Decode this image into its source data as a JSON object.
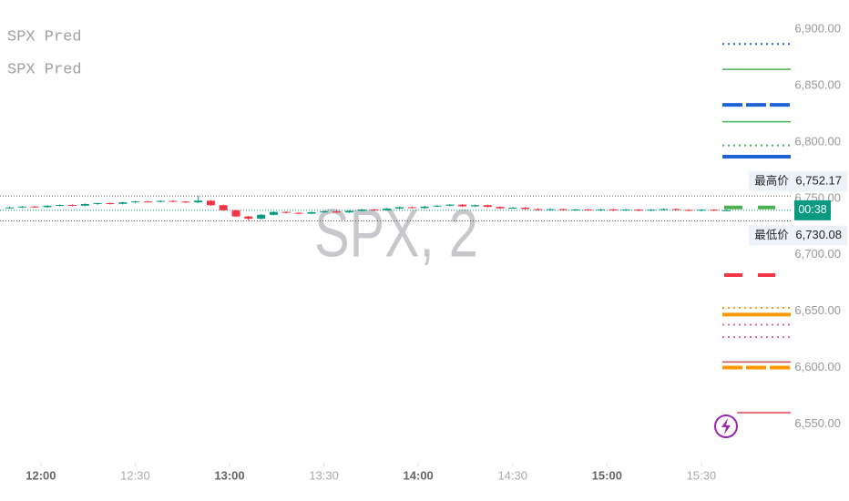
{
  "chart_data": {
    "type": "candlestick",
    "legend": [
      "SPX Pred",
      "SPX Pred"
    ],
    "watermark": "SPX, 2",
    "up_color": "#089981",
    "down_color": "#f23645",
    "x": [
      "11:48",
      "11:52",
      "11:56",
      "12:00",
      "12:04",
      "12:08",
      "12:12",
      "12:16",
      "12:20",
      "12:24",
      "12:28",
      "12:32",
      "12:36",
      "12:40",
      "12:44",
      "12:48",
      "12:52",
      "12:56",
      "13:00",
      "13:04",
      "13:08",
      "13:12",
      "13:16",
      "13:20",
      "13:24",
      "13:28",
      "13:32",
      "13:36",
      "13:40",
      "13:44",
      "13:48",
      "13:52",
      "13:56",
      "14:00",
      "14:04",
      "14:08",
      "14:12",
      "14:16",
      "14:20",
      "14:24",
      "14:28",
      "14:32",
      "14:36",
      "14:40",
      "14:44",
      "14:48",
      "14:52",
      "14:56",
      "15:00",
      "15:04",
      "15:08",
      "15:12",
      "15:16",
      "15:20",
      "15:24",
      "15:28",
      "15:32",
      "15:36"
    ],
    "open": [
      6741.6,
      6742.0,
      6742.8,
      6742.3,
      6743.5,
      6744.2,
      6743.6,
      6745.0,
      6745.8,
      6745.2,
      6746.5,
      6747.3,
      6747.0,
      6747.8,
      6747.2,
      6746.5,
      6748.0,
      6744.0,
      6739.5,
      6734.0,
      6732.0,
      6735.5,
      6738.0,
      6737.2,
      6736.5,
      6737.8,
      6738.5,
      6737.6,
      6739.0,
      6740.2,
      6739.6,
      6741.0,
      6742.2,
      6741.5,
      6742.8,
      6743.6,
      6744.5,
      6743.0,
      6744.0,
      6742.5,
      6741.2,
      6741.8,
      6740.6,
      6739.8,
      6740.5,
      6739.6,
      6740.2,
      6739.5,
      6740.3,
      6739.4,
      6740.1,
      6739.2,
      6740.0,
      6740.6,
      6739.8,
      6739.2,
      6740.0,
      6739.4
    ],
    "high": [
      6742.6,
      6743.4,
      6743.4,
      6744.1,
      6744.8,
      6744.8,
      6745.6,
      6746.4,
      6746.4,
      6747.1,
      6747.9,
      6747.9,
      6748.4,
      6748.4,
      6747.8,
      6752.17,
      6748.6,
      6744.6,
      6740.1,
      6734.6,
      6736.1,
      6738.6,
      6738.6,
      6737.8,
      6738.4,
      6739.1,
      6739.1,
      6739.6,
      6740.8,
      6740.8,
      6741.6,
      6742.8,
      6742.8,
      6743.4,
      6744.2,
      6745.1,
      6745.1,
      6744.6,
      6744.6,
      6743.1,
      6742.4,
      6742.4,
      6741.2,
      6741.1,
      6741.1,
      6740.8,
      6740.8,
      6740.9,
      6740.9,
      6740.7,
      6740.7,
      6740.6,
      6741.2,
      6741.2,
      6740.4,
      6740.6,
      6740.6,
      6740.1
    ],
    "low": [
      6741.0,
      6741.4,
      6741.7,
      6741.7,
      6742.9,
      6743.0,
      6743.0,
      6744.4,
      6744.6,
      6744.6,
      6745.9,
      6746.4,
      6746.4,
      6746.6,
      6745.9,
      6745.9,
      6743.4,
      6738.9,
      6733.4,
      6730.08,
      6731.4,
      6734.9,
      6736.6,
      6735.9,
      6735.9,
      6737.2,
      6737.0,
      6737.0,
      6738.4,
      6739.0,
      6739.0,
      6740.4,
      6740.9,
      6740.9,
      6742.2,
      6743.0,
      6742.4,
      6742.4,
      6741.9,
      6740.6,
      6740.6,
      6740.0,
      6739.2,
      6739.2,
      6739.0,
      6739.0,
      6738.9,
      6738.9,
      6738.8,
      6738.8,
      6738.6,
      6738.6,
      6739.4,
      6739.2,
      6738.6,
      6738.6,
      6738.8,
      6738.8
    ],
    "close": [
      6742.0,
      6742.8,
      6742.3,
      6743.5,
      6744.2,
      6743.6,
      6745.0,
      6745.8,
      6745.2,
      6746.5,
      6747.3,
      6747.0,
      6747.8,
      6747.2,
      6746.5,
      6748.0,
      6744.0,
      6739.5,
      6734.0,
      6732.0,
      6735.5,
      6738.0,
      6737.2,
      6736.5,
      6737.8,
      6738.5,
      6737.6,
      6739.0,
      6740.2,
      6739.6,
      6741.0,
      6742.2,
      6741.5,
      6742.8,
      6743.6,
      6744.5,
      6743.0,
      6744.0,
      6742.5,
      6741.2,
      6741.8,
      6740.6,
      6739.8,
      6740.5,
      6739.6,
      6740.2,
      6739.5,
      6740.3,
      6739.4,
      6740.1,
      6739.2,
      6740.0,
      6740.6,
      6739.8,
      6739.2,
      6740.0,
      6739.4,
      6739.5
    ],
    "xlim": [
      "11:47",
      "15:59"
    ],
    "xticks": [
      "12:00",
      "12:30",
      "13:00",
      "13:30",
      "14:00",
      "14:30",
      "15:00",
      "15:30"
    ],
    "ylim": [
      6518,
      6926
    ],
    "yticks": [
      {
        "value": 6550,
        "label": "6,550.00"
      },
      {
        "value": 6600,
        "label": "6,600.00"
      },
      {
        "value": 6650,
        "label": "6,650.00"
      },
      {
        "value": 6700,
        "label": "6,700.00"
      },
      {
        "value": 6750,
        "label": "6,750.00"
      },
      {
        "value": 6800,
        "label": "6,800.00"
      },
      {
        "value": 6850,
        "label": "6,850.00"
      },
      {
        "value": 6900,
        "label": "6,900.00"
      }
    ],
    "high_marker": {
      "label": "最高价",
      "value": 6752.17,
      "value_label": "6,752.17"
    },
    "low_marker": {
      "label": "最低价",
      "value": 6730.08,
      "value_label": "6,730.08"
    },
    "last_price": {
      "value": 6739.5,
      "countdown": "00:38",
      "color": "#089981"
    },
    "levels": [
      {
        "value": 6887,
        "color": "#1e63d6",
        "style": "dotted"
      },
      {
        "value": 6864.5,
        "color": "#4caf50",
        "style": "solid"
      },
      {
        "value": 6833,
        "color": "#1e63d6",
        "style": "dashed-thick"
      },
      {
        "value": 6818,
        "color": "#4caf50",
        "style": "solid"
      },
      {
        "value": 6797,
        "color": "#4caf50",
        "style": "dotted"
      },
      {
        "value": 6787,
        "color": "#1e63d6",
        "style": "thick"
      },
      {
        "value": 6742,
        "color": "#4caf50",
        "style": "split-thick"
      },
      {
        "value": 6682,
        "color": "#f23645",
        "style": "split-thick"
      },
      {
        "value": 6653,
        "color": "#ff9800",
        "style": "dotted"
      },
      {
        "value": 6647,
        "color": "#ff9800",
        "style": "thick"
      },
      {
        "value": 6638,
        "color": "#f06292",
        "style": "dotted"
      },
      {
        "value": 6627,
        "color": "#f06292",
        "style": "dotted"
      },
      {
        "value": 6605,
        "color": "#c0504d",
        "style": "solid"
      },
      {
        "value": 6600,
        "color": "#ff9800",
        "style": "dashed-thick"
      },
      {
        "value": 6560,
        "color": "#e0455a",
        "style": "solid"
      }
    ]
  }
}
